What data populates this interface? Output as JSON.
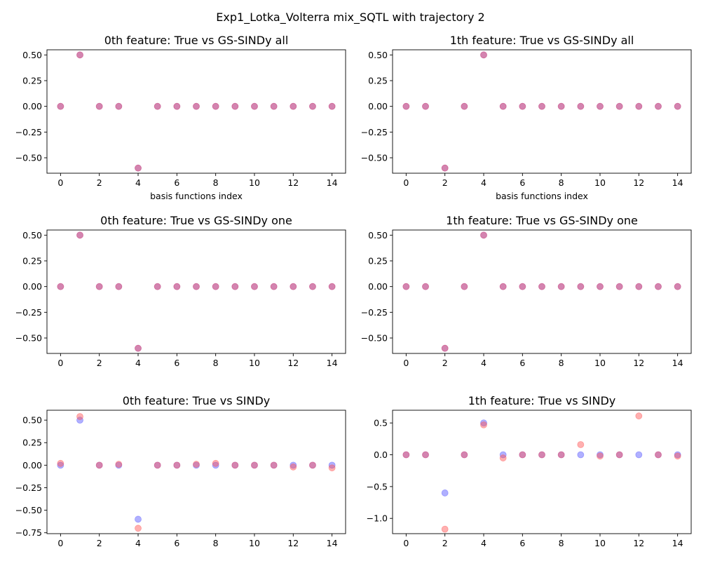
{
  "figure": {
    "suptitle": "Exp1_Lotka_Volterra mix_SQTL with trajectory 2"
  },
  "colors": {
    "true_marker": "#4f4fff",
    "pred_marker": "#ff4f4f",
    "overlap_note": "true and predicted markers are semi-transparent blue and red; overlap appears purple"
  },
  "chart_data": [
    {
      "type": "scatter",
      "title": "0th feature: True vs GS-SINDy all",
      "xlabel": "basis functions index",
      "ylabel": "",
      "xlim": [
        -0.7,
        14.7
      ],
      "ylim": [
        -0.65,
        0.55
      ],
      "xticks": [
        0,
        2,
        4,
        6,
        8,
        10,
        12,
        14
      ],
      "xtick_labels": [
        "0",
        "2",
        "4",
        "6",
        "8",
        "10",
        "12",
        "14"
      ],
      "yticks": [
        -0.5,
        -0.25,
        0.0,
        0.25,
        0.5
      ],
      "ytick_labels": [
        "−0.50",
        "−0.25",
        "0.00",
        "0.25",
        "0.50"
      ],
      "x": [
        0,
        1,
        2,
        3,
        4,
        5,
        6,
        7,
        8,
        9,
        10,
        11,
        12,
        13,
        14
      ],
      "series": [
        {
          "values": [
            0,
            0.5,
            0,
            0,
            -0.6,
            0,
            0,
            0,
            0,
            0,
            0,
            0,
            0,
            0,
            0
          ]
        },
        {
          "values": [
            0,
            0.5,
            0,
            0,
            -0.6,
            0,
            0,
            0,
            0,
            0,
            0,
            0,
            0,
            0,
            0
          ]
        }
      ],
      "grid": false
    },
    {
      "type": "scatter",
      "title": "1th feature: True vs GS-SINDy all",
      "xlabel": "basis functions index",
      "ylabel": "",
      "xlim": [
        -0.7,
        14.7
      ],
      "ylim": [
        -0.65,
        0.55
      ],
      "xticks": [
        0,
        2,
        4,
        6,
        8,
        10,
        12,
        14
      ],
      "xtick_labels": [
        "0",
        "2",
        "4",
        "6",
        "8",
        "10",
        "12",
        "14"
      ],
      "yticks": [
        -0.5,
        -0.25,
        0.0,
        0.25,
        0.5
      ],
      "ytick_labels": [
        "−0.50",
        "−0.25",
        "0.00",
        "0.25",
        "0.50"
      ],
      "x": [
        0,
        1,
        2,
        3,
        4,
        5,
        6,
        7,
        8,
        9,
        10,
        11,
        12,
        13,
        14
      ],
      "series": [
        {
          "values": [
            0,
            0,
            -0.6,
            0,
            0.5,
            0,
            0,
            0,
            0,
            0,
            0,
            0,
            0,
            0,
            0
          ]
        },
        {
          "values": [
            0,
            0,
            -0.6,
            0,
            0.5,
            0,
            0,
            0,
            0,
            0,
            0,
            0,
            0,
            0,
            0
          ]
        }
      ],
      "grid": false
    },
    {
      "type": "scatter",
      "title": "0th feature: True vs GS-SINDy one",
      "xlabel": "",
      "ylabel": "",
      "xlim": [
        -0.7,
        14.7
      ],
      "ylim": [
        -0.65,
        0.55
      ],
      "xticks": [
        0,
        2,
        4,
        6,
        8,
        10,
        12,
        14
      ],
      "xtick_labels": [
        "0",
        "2",
        "4",
        "6",
        "8",
        "10",
        "12",
        "14"
      ],
      "yticks": [
        -0.5,
        -0.25,
        0.0,
        0.25,
        0.5
      ],
      "ytick_labels": [
        "−0.50",
        "−0.25",
        "0.00",
        "0.25",
        "0.50"
      ],
      "x": [
        0,
        1,
        2,
        3,
        4,
        5,
        6,
        7,
        8,
        9,
        10,
        11,
        12,
        13,
        14
      ],
      "series": [
        {
          "values": [
            0,
            0.5,
            0,
            0,
            -0.6,
            0,
            0,
            0,
            0,
            0,
            0,
            0,
            0,
            0,
            0
          ]
        },
        {
          "values": [
            0,
            0.5,
            0,
            0,
            -0.6,
            0,
            0,
            0,
            0,
            0,
            0,
            0,
            0,
            0,
            0
          ]
        }
      ],
      "grid": false
    },
    {
      "type": "scatter",
      "title": "1th feature: True vs GS-SINDy one",
      "xlabel": "",
      "ylabel": "",
      "xlim": [
        -0.7,
        14.7
      ],
      "ylim": [
        -0.65,
        0.55
      ],
      "xticks": [
        0,
        2,
        4,
        6,
        8,
        10,
        12,
        14
      ],
      "xtick_labels": [
        "0",
        "2",
        "4",
        "6",
        "8",
        "10",
        "12",
        "14"
      ],
      "yticks": [
        -0.5,
        -0.25,
        0.0,
        0.25,
        0.5
      ],
      "ytick_labels": [
        "−0.50",
        "−0.25",
        "0.00",
        "0.25",
        "0.50"
      ],
      "x": [
        0,
        1,
        2,
        3,
        4,
        5,
        6,
        7,
        8,
        9,
        10,
        11,
        12,
        13,
        14
      ],
      "series": [
        {
          "values": [
            0,
            0,
            -0.6,
            0,
            0.5,
            0,
            0,
            0,
            0,
            0,
            0,
            0,
            0,
            0,
            0
          ]
        },
        {
          "values": [
            0,
            0,
            -0.6,
            0,
            0.5,
            0,
            0,
            0,
            0,
            0,
            0,
            0,
            0,
            0,
            0
          ]
        }
      ],
      "grid": false
    },
    {
      "type": "scatter",
      "title": "0th feature: True vs SINDy",
      "xlabel": "",
      "ylabel": "",
      "xlim": [
        -0.7,
        14.7
      ],
      "ylim": [
        -0.76,
        0.61
      ],
      "xticks": [
        0,
        2,
        4,
        6,
        8,
        10,
        12,
        14
      ],
      "xtick_labels": [
        "0",
        "2",
        "4",
        "6",
        "8",
        "10",
        "12",
        "14"
      ],
      "yticks": [
        -0.75,
        -0.5,
        -0.25,
        0.0,
        0.25,
        0.5
      ],
      "ytick_labels": [
        "−0.75",
        "−0.50",
        "−0.25",
        "0.00",
        "0.25",
        "0.50"
      ],
      "x": [
        0,
        1,
        2,
        3,
        4,
        5,
        6,
        7,
        8,
        9,
        10,
        11,
        12,
        13,
        14
      ],
      "series": [
        {
          "values": [
            0,
            0.5,
            0,
            0,
            -0.6,
            0,
            0,
            0,
            0,
            0,
            0,
            0,
            0,
            0,
            0
          ]
        },
        {
          "values": [
            0.02,
            0.54,
            0,
            0.01,
            -0.7,
            0,
            0,
            0.01,
            0.02,
            0,
            0,
            0,
            -0.02,
            0,
            -0.03
          ]
        }
      ],
      "grid": false
    },
    {
      "type": "scatter",
      "title": "1th feature: True vs SINDy",
      "xlabel": "",
      "ylabel": "",
      "xlim": [
        -0.7,
        14.7
      ],
      "ylim": [
        -1.24,
        0.7
      ],
      "xticks": [
        0,
        2,
        4,
        6,
        8,
        10,
        12,
        14
      ],
      "xtick_labels": [
        "0",
        "2",
        "4",
        "6",
        "8",
        "10",
        "12",
        "14"
      ],
      "yticks": [
        -1.0,
        -0.5,
        0.0,
        0.5
      ],
      "ytick_labels": [
        "−1.0",
        "−0.5",
        "0.0",
        "0.5"
      ],
      "x": [
        0,
        1,
        2,
        3,
        4,
        5,
        6,
        7,
        8,
        9,
        10,
        11,
        12,
        13,
        14
      ],
      "series": [
        {
          "values": [
            0,
            0,
            -0.6,
            0,
            0.5,
            0,
            0,
            0,
            0,
            0,
            0,
            0,
            0,
            0,
            0
          ]
        },
        {
          "values": [
            0,
            0,
            -1.17,
            0,
            0.47,
            -0.05,
            0,
            0,
            0,
            0.16,
            -0.02,
            0,
            0.61,
            0,
            -0.02
          ]
        }
      ],
      "grid": false
    }
  ]
}
